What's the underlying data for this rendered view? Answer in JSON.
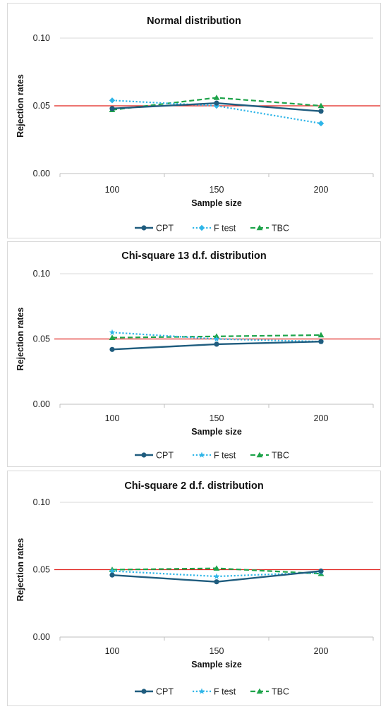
{
  "chart_data": [
    {
      "type": "line",
      "title": "Normal distribution",
      "xlabel": "Sample size",
      "ylabel": "Rejection rates",
      "categories": [
        "100",
        "150",
        "200"
      ],
      "ylim": [
        0,
        0.1
      ],
      "yticks": [
        "0.00",
        "0.05",
        "0.10"
      ],
      "reference_line": {
        "value": 0.05,
        "color": "#e0201b"
      },
      "grid": true,
      "legend_position": "bottom",
      "series": [
        {
          "name": "CPT",
          "values": [
            0.048,
            0.052,
            0.046
          ],
          "color": "#1f5c7e",
          "dash": "solid",
          "marker": "circle"
        },
        {
          "name": "F test",
          "values": [
            0.054,
            0.05,
            0.037
          ],
          "color": "#2eb5e8",
          "dash": "dotted",
          "marker": "diamond"
        },
        {
          "name": "TBC",
          "values": [
            0.047,
            0.056,
            0.05
          ],
          "color": "#1ea34a",
          "dash": "dashed",
          "marker": "triangle"
        }
      ]
    },
    {
      "type": "line",
      "title": "Chi-square 13 d.f. distribution",
      "xlabel": "Sample size",
      "ylabel": "Rejection rates",
      "categories": [
        "100",
        "150",
        "200"
      ],
      "ylim": [
        0,
        0.1
      ],
      "yticks": [
        "0.00",
        "0.05",
        "0.10"
      ],
      "reference_line": {
        "value": 0.05,
        "color": "#e0201b"
      },
      "grid": true,
      "legend_position": "bottom",
      "series": [
        {
          "name": "CPT",
          "values": [
            0.042,
            0.046,
            0.048
          ],
          "color": "#1f5c7e",
          "dash": "solid",
          "marker": "circle"
        },
        {
          "name": "F test",
          "values": [
            0.055,
            0.05,
            0.048
          ],
          "color": "#2eb5e8",
          "dash": "dotted",
          "marker": "star"
        },
        {
          "name": "TBC",
          "values": [
            0.051,
            0.052,
            0.053
          ],
          "color": "#1ea34a",
          "dash": "dashed",
          "marker": "triangle"
        }
      ]
    },
    {
      "type": "line",
      "title": "Chi-square 2 d.f. distribution",
      "xlabel": "Sample size",
      "ylabel": "Rejection rates",
      "categories": [
        "100",
        "150",
        "200"
      ],
      "ylim": [
        0,
        0.1
      ],
      "yticks": [
        "0.00",
        "0.05",
        "0.10"
      ],
      "reference_line": {
        "value": 0.05,
        "color": "#e0201b"
      },
      "grid": true,
      "legend_position": "bottom",
      "series": [
        {
          "name": "CPT",
          "values": [
            0.046,
            0.041,
            0.049
          ],
          "color": "#1f5c7e",
          "dash": "solid",
          "marker": "circle"
        },
        {
          "name": "F test",
          "values": [
            0.049,
            0.045,
            0.048
          ],
          "color": "#2eb5e8",
          "dash": "dotted",
          "marker": "star"
        },
        {
          "name": "TBC",
          "values": [
            0.05,
            0.051,
            0.047
          ],
          "color": "#1ea34a",
          "dash": "dashed",
          "marker": "triangle"
        }
      ]
    }
  ]
}
